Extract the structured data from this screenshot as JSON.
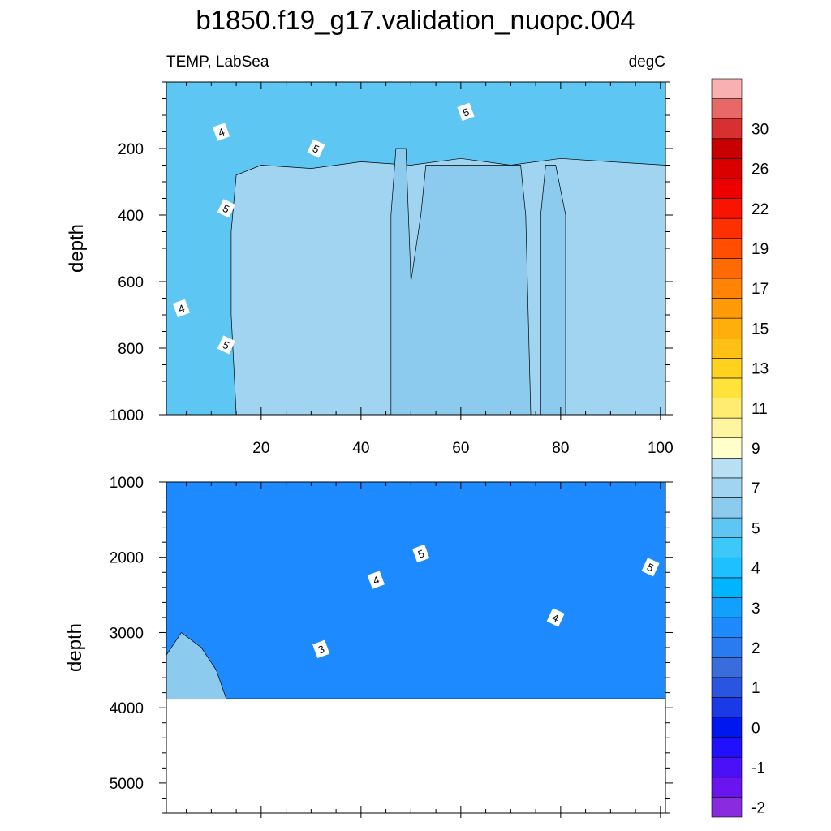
{
  "chart_data": {
    "type": "contour",
    "title": "b1850.f19_g17.validation_nuopc.004",
    "left_subtitle": "TEMP, LabSea",
    "right_subtitle": "degC",
    "panels": [
      {
        "name": "upper",
        "ylabel": "depth",
        "xlim": [
          1,
          101
        ],
        "ylim": [
          0,
          1000
        ],
        "yreverse": true,
        "xticks": [
          20,
          40,
          60,
          80,
          100
        ],
        "yticks": [
          200,
          400,
          600,
          800,
          1000
        ],
        "contours": [
          {
            "level": 3.5,
            "points": [
              [
                1,
                1000
              ],
              [
                3,
                600
              ],
              [
                4,
                300
              ],
              [
                6,
                180
              ],
              [
                10,
                120
              ],
              [
                14,
                80
              ],
              [
                20,
                60
              ],
              [
                30,
                40
              ],
              [
                30,
                0
              ],
              [
                1,
                0
              ]
            ]
          },
          {
            "level": 4.0,
            "points": [
              [
                1,
                1000
              ],
              [
                5,
                1000
              ],
              [
                6,
                700
              ],
              [
                8,
                400
              ],
              [
                12,
                250
              ],
              [
                16,
                200
              ],
              [
                22,
                180
              ],
              [
                30,
                160
              ],
              [
                40,
                150
              ],
              [
                50,
                160
              ],
              [
                60,
                140
              ],
              [
                70,
                150
              ],
              [
                80,
                140
              ],
              [
                90,
                150
              ],
              [
                101,
                140
              ],
              [
                101,
                0
              ],
              [
                1,
                0
              ]
            ]
          },
          {
            "level": 4.5,
            "points": [
              [
                1,
                1000
              ],
              [
                12,
                1000
              ],
              [
                12,
                700
              ],
              [
                12,
                450
              ],
              [
                13,
                300
              ],
              [
                16,
                220
              ],
              [
                20,
                210
              ],
              [
                26,
                190
              ],
              [
                34,
                200
              ],
              [
                46,
                185
              ],
              [
                56,
                195
              ],
              [
                66,
                175
              ],
              [
                76,
                180
              ],
              [
                86,
                175
              ],
              [
                101,
                190
              ],
              [
                101,
                0
              ],
              [
                1,
                0
              ]
            ]
          },
          {
            "level": 5.0,
            "points": [
              [
                1,
                1000
              ],
              [
                15,
                1000
              ],
              [
                14,
                700
              ],
              [
                14,
                450
              ],
              [
                15,
                280
              ],
              [
                20,
                250
              ],
              [
                30,
                260
              ],
              [
                40,
                240
              ],
              [
                50,
                250
              ],
              [
                60,
                230
              ],
              [
                70,
                250
              ],
              [
                80,
                230
              ],
              [
                90,
                240
              ],
              [
                101,
                250
              ],
              [
                101,
                0
              ],
              [
                1,
                0
              ]
            ]
          },
          {
            "level": 5.5,
            "points": [
              [
                46,
                1000
              ],
              [
                46,
                400
              ],
              [
                47,
                200
              ],
              [
                49,
                200
              ],
              [
                50,
                600
              ],
              [
                52,
                400
              ],
              [
                53,
                250
              ],
              [
                72,
                250
              ],
              [
                73,
                400
              ],
              [
                74,
                1000
              ]
            ]
          },
          {
            "level": 5.5,
            "points": [
              [
                76,
                1000
              ],
              [
                76,
                400
              ],
              [
                77,
                250
              ],
              [
                79,
                250
              ],
              [
                81,
                400
              ],
              [
                81,
                1000
              ]
            ]
          }
        ],
        "labels": [
          {
            "value": "4",
            "x": 12,
            "y": 150
          },
          {
            "value": "5",
            "x": 31,
            "y": 200
          },
          {
            "value": "5",
            "x": 61,
            "y": 90
          },
          {
            "value": "5",
            "x": 13,
            "y": 380
          },
          {
            "value": "4",
            "x": 4,
            "y": 680
          },
          {
            "value": "5",
            "x": 13,
            "y": 790
          }
        ]
      },
      {
        "name": "lower",
        "ylabel": "depth",
        "xlim": [
          1,
          101
        ],
        "ylim": [
          1000,
          5400
        ],
        "yreverse": true,
        "xticks": [
          20,
          40,
          60,
          80,
          100
        ],
        "yticks": [
          1000,
          2000,
          3000,
          4000,
          5000
        ],
        "data_max_depth": 3880,
        "contours": [
          {
            "level": 5.5,
            "points": [
              [
                1,
                1000
              ],
              [
                20,
                1000
              ],
              [
                30,
                1100
              ],
              [
                40,
                1250
              ],
              [
                50,
                1400
              ],
              [
                60,
                1500
              ],
              [
                70,
                1550
              ],
              [
                80,
                1450
              ],
              [
                90,
                1500
              ],
              [
                101,
                1600
              ],
              [
                101,
                1000
              ]
            ]
          },
          {
            "level": 5.0,
            "points": [
              [
                1,
                1000
              ],
              [
                10,
                1000
              ],
              [
                20,
                1300
              ],
              [
                30,
                1600
              ],
              [
                40,
                1800
              ],
              [
                50,
                1900
              ],
              [
                55,
                2100
              ],
              [
                65,
                2100
              ],
              [
                75,
                2000
              ],
              [
                85,
                2050
              ],
              [
                95,
                2100
              ],
              [
                101,
                2200
              ],
              [
                101,
                1000
              ]
            ]
          },
          {
            "level": 4.5,
            "points": [
              [
                1,
                1000
              ],
              [
                5,
                1000
              ],
              [
                15,
                1500
              ],
              [
                25,
                1900
              ],
              [
                35,
                2200
              ],
              [
                45,
                2300
              ],
              [
                55,
                2300
              ],
              [
                65,
                2400
              ],
              [
                75,
                2450
              ],
              [
                85,
                2500
              ],
              [
                95,
                2550
              ],
              [
                101,
                2550
              ],
              [
                101,
                1000
              ]
            ]
          },
          {
            "level": 4.0,
            "points": [
              [
                1,
                1300
              ],
              [
                5,
                1500
              ],
              [
                15,
                2000
              ],
              [
                25,
                2350
              ],
              [
                35,
                2500
              ],
              [
                45,
                2650
              ],
              [
                55,
                2750
              ],
              [
                65,
                2800
              ],
              [
                75,
                2800
              ],
              [
                85,
                2900
              ],
              [
                95,
                3000
              ],
              [
                101,
                3000
              ],
              [
                101,
                1000
              ],
              [
                1,
                1000
              ]
            ]
          },
          {
            "level": 3.5,
            "points": [
              [
                1,
                2200
              ],
              [
                5,
                2000
              ],
              [
                15,
                2500
              ],
              [
                25,
                2900
              ],
              [
                35,
                3200
              ],
              [
                45,
                3500
              ],
              [
                55,
                3600
              ],
              [
                65,
                3700
              ],
              [
                75,
                3750
              ],
              [
                85,
                3800
              ],
              [
                95,
                3850
              ],
              [
                101,
                3850
              ],
              [
                101,
                1000
              ],
              [
                1,
                1000
              ]
            ]
          },
          {
            "level": 3.0,
            "points": [
              [
                1,
                3000
              ],
              [
                5,
                2500
              ],
              [
                15,
                2800
              ],
              [
                25,
                3200
              ],
              [
                35,
                3500
              ],
              [
                45,
                3800
              ],
              [
                48,
                3880
              ],
              [
                101,
                3880
              ],
              [
                101,
                1000
              ],
              [
                1,
                1000
              ]
            ]
          },
          {
            "level": 2.5,
            "points": [
              [
                1,
                3300
              ],
              [
                4,
                3000
              ],
              [
                8,
                3200
              ],
              [
                11,
                3500
              ],
              [
                13,
                3880
              ],
              [
                101,
                3880
              ],
              [
                101,
                1000
              ],
              [
                1,
                1000
              ]
            ]
          }
        ],
        "labels": [
          {
            "value": "5",
            "x": 52,
            "y": 1950
          },
          {
            "value": "5",
            "x": 98,
            "y": 2130
          },
          {
            "value": "4",
            "x": 43,
            "y": 2300
          },
          {
            "value": "4",
            "x": 79,
            "y": 2800
          },
          {
            "value": "3",
            "x": 32,
            "y": 3220
          }
        ]
      }
    ],
    "colorbar": {
      "levels": [
        -2,
        -1.5,
        -1,
        -0.5,
        0,
        0.5,
        1,
        1.5,
        2,
        2.5,
        3,
        3.5,
        4,
        4.5,
        5,
        5.5,
        6,
        6.5,
        7,
        9,
        10,
        11,
        12,
        13,
        14,
        15,
        16,
        17,
        18,
        19,
        20,
        22,
        24,
        26,
        28,
        30,
        32,
        34
      ],
      "tick_labels": [
        "-2",
        "-1",
        "0",
        "1",
        "2",
        "3",
        "4",
        "5",
        "7",
        "9",
        "11",
        "13",
        "15",
        "17",
        "19",
        "22",
        "26",
        "30"
      ],
      "colors": [
        "#8B2BE0",
        "#6A14F0",
        "#4A10F8",
        "#2010FF",
        "#0018F0",
        "#1A3AE8",
        "#2A55E0",
        "#3A6CDC",
        "#2A7BF0",
        "#1E8AFF",
        "#12A0FF",
        "#00B4FF",
        "#1EC0FF",
        "#3CC8F8",
        "#5EC6F2",
        "#8CCAEE",
        "#A0D4F0",
        "#B8E0F2",
        "#FFFFCC",
        "#FFF4A0",
        "#FFEC70",
        "#FFE23A",
        "#FFD21E",
        "#FFC014",
        "#FFAE0C",
        "#FF9A08",
        "#FF8406",
        "#FF6A04",
        "#FF4E02",
        "#FF3000",
        "#F81400",
        "#EC0000",
        "#DA0000",
        "#C80000",
        "#D83030",
        "#E86868",
        "#F8B0B0"
      ]
    },
    "fill_palette": {
      "2.0": "#2A7BF0",
      "2.5": "#1E8AFF",
      "3.0": "#12A0FF",
      "3.5": "#00B4FF",
      "4.0": "#1EC0FF",
      "4.5": "#3CC8F8",
      "5.0": "#5EC6F2",
      "5.5": "#8CCAEE",
      "6.0": "#A0D4F0"
    },
    "background_fill": {
      "upper": "6.0",
      "lower": "5.5"
    }
  }
}
